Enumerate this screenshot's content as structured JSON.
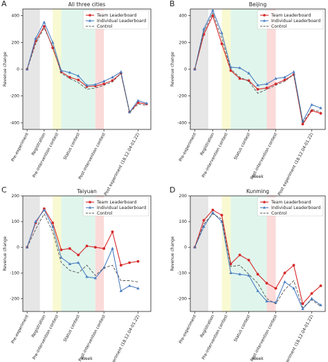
{
  "chart_data": [
    {
      "letter": "A",
      "type": "line",
      "title": "All three cities",
      "xlabel": "",
      "ylabel": "Revenue change",
      "ylim": [
        -450,
        450
      ],
      "yticks": [
        -400,
        -200,
        0,
        200,
        400
      ],
      "xticks": [
        {
          "i": 0,
          "label": "Pre-experiment"
        },
        {
          "i": 2,
          "label": "Registration"
        },
        {
          "i": 3.5,
          "label": "Pre-intervention contest"
        },
        {
          "i": 6,
          "label": "Status contest"
        },
        {
          "i": 9,
          "label": "Post-intervention contest"
        },
        {
          "i": 13,
          "label": "Post experiment (18.12.04-01.22)"
        }
      ],
      "shading": [
        {
          "from": -0.5,
          "to": 1.5,
          "color": "#e6e6e6"
        },
        {
          "from": 3.0,
          "to": 4.0,
          "color": "#f9f9d2"
        },
        {
          "from": 4.0,
          "to": 8.0,
          "color": "#e0f6ed"
        },
        {
          "from": 8.0,
          "to": 9.0,
          "color": "#fbdada"
        }
      ],
      "legend": "top-right",
      "series": [
        {
          "name": "Team Leaderboard",
          "color": "#d62728",
          "style": "solid",
          "marker": "circle",
          "values": [
            0,
            210,
            320,
            160,
            -20,
            -60,
            -80,
            -130,
            -125,
            -110,
            -85,
            -30,
            -320,
            -250,
            -260
          ]
        },
        {
          "name": "Individual Leaderboard",
          "color": "#4c7fc0",
          "style": "solid",
          "marker": "triangle",
          "values": [
            0,
            230,
            350,
            200,
            -10,
            -25,
            -50,
            -120,
            -115,
            -90,
            -60,
            -20,
            -320,
            -235,
            -255
          ]
        },
        {
          "name": "Control",
          "color": "#555555",
          "style": "dashed",
          "marker": "none",
          "values": [
            0,
            190,
            310,
            170,
            -30,
            -70,
            -100,
            -150,
            -140,
            -120,
            -95,
            -30,
            -325,
            -260,
            -270
          ]
        }
      ]
    },
    {
      "letter": "B",
      "type": "line",
      "title": "Beijing",
      "xlabel": "Week",
      "ylabel": "Revenue change",
      "ylim": [
        -450,
        450
      ],
      "yticks": [
        -400,
        -200,
        0,
        200,
        400
      ],
      "xticks": [
        {
          "i": 0,
          "label": "Pre-experiment"
        },
        {
          "i": 2,
          "label": "Registration"
        },
        {
          "i": 3.5,
          "label": "Pre-intervention contest"
        },
        {
          "i": 6,
          "label": "Status contest"
        },
        {
          "i": 9,
          "label": "Post-intervention contest"
        },
        {
          "i": 13,
          "label": "Post experiment (18.12.04-01.22)"
        }
      ],
      "shading": [
        {
          "from": -0.5,
          "to": 1.5,
          "color": "#e6e6e6"
        },
        {
          "from": 3.0,
          "to": 4.0,
          "color": "#f9f9d2"
        },
        {
          "from": 4.0,
          "to": 8.0,
          "color": "#e0f6ed"
        },
        {
          "from": 8.0,
          "to": 9.0,
          "color": "#fbdada"
        }
      ],
      "legend": "top-right",
      "series": [
        {
          "name": "Team Leaderboard",
          "color": "#d62728",
          "style": "solid",
          "marker": "circle",
          "values": [
            0,
            260,
            400,
            190,
            -10,
            -70,
            -85,
            -150,
            -140,
            -110,
            -80,
            -40,
            -410,
            -310,
            -330
          ]
        },
        {
          "name": "Individual Leaderboard",
          "color": "#4c7fc0",
          "style": "solid",
          "marker": "triangle",
          "values": [
            0,
            300,
            440,
            270,
            15,
            10,
            -30,
            -120,
            -110,
            -70,
            -60,
            -20,
            -390,
            -265,
            -290
          ]
        },
        {
          "name": "Control",
          "color": "#555555",
          "style": "dashed",
          "marker": "none",
          "values": [
            0,
            280,
            420,
            230,
            0,
            -60,
            -90,
            -180,
            -150,
            -120,
            -90,
            -40,
            -400,
            -300,
            -320
          ]
        }
      ]
    },
    {
      "letter": "C",
      "type": "line",
      "title": "Taiyuan",
      "xlabel": "Week",
      "ylabel": "Revenue change",
      "ylim": [
        -250,
        200
      ],
      "yticks": [
        -200,
        -100,
        0,
        100,
        200
      ],
      "xticks": [
        {
          "i": 0,
          "label": "Pre-experiment"
        },
        {
          "i": 2,
          "label": "Registration"
        },
        {
          "i": 3.5,
          "label": "Pre-intervention contest"
        },
        {
          "i": 6,
          "label": "Status contest"
        },
        {
          "i": 9,
          "label": "Post-intervention contest"
        },
        {
          "i": 13,
          "label": "Post experiment (18.12.04-01.22)"
        }
      ],
      "shading": [
        {
          "from": -0.5,
          "to": 1.5,
          "color": "#e6e6e6"
        },
        {
          "from": 3.0,
          "to": 4.0,
          "color": "#f9f9d2"
        },
        {
          "from": 4.0,
          "to": 8.0,
          "color": "#e0f6ed"
        },
        {
          "from": 8.0,
          "to": 9.0,
          "color": "#fbdada"
        }
      ],
      "legend": "top-right",
      "series": [
        {
          "name": "Team Leaderboard",
          "color": "#d62728",
          "style": "solid",
          "marker": "circle",
          "values": [
            0,
            95,
            150,
            95,
            -10,
            -5,
            -30,
            5,
            0,
            -5,
            60,
            -70,
            -60,
            -55
          ]
        },
        {
          "name": "Individual Leaderboard",
          "color": "#4c7fc0",
          "style": "solid",
          "marker": "triangle",
          "values": [
            0,
            100,
            145,
            80,
            -40,
            -65,
            -60,
            -115,
            -120,
            -80,
            -5,
            -170,
            -150,
            -160
          ]
        },
        {
          "name": "Control",
          "color": "#555555",
          "style": "dashed",
          "marker": "none",
          "values": [
            0,
            70,
            130,
            60,
            -60,
            -90,
            -100,
            -70,
            -110,
            -80,
            -70,
            -130,
            -130,
            -135
          ]
        }
      ]
    },
    {
      "letter": "D",
      "type": "line",
      "title": "Kunming",
      "xlabel": "Week",
      "ylabel": "Revenue change",
      "ylim": [
        -250,
        200
      ],
      "yticks": [
        -200,
        -100,
        0,
        100,
        200
      ],
      "xticks": [
        {
          "i": 0,
          "label": "Pre-experiment"
        },
        {
          "i": 2,
          "label": "Registration"
        },
        {
          "i": 3.5,
          "label": "Pre-intervention contest"
        },
        {
          "i": 6,
          "label": "Status contest"
        },
        {
          "i": 9,
          "label": "Post-intervention contest"
        },
        {
          "i": 13,
          "label": "Post experiment (18.12.04-01.22)"
        }
      ],
      "shading": [
        {
          "from": -0.5,
          "to": 1.5,
          "color": "#e6e6e6"
        },
        {
          "from": 3.0,
          "to": 4.0,
          "color": "#f9f9d2"
        },
        {
          "from": 4.0,
          "to": 8.0,
          "color": "#e0f6ed"
        },
        {
          "from": 8.0,
          "to": 9.0,
          "color": "#fbdada"
        }
      ],
      "legend": "top-right",
      "series": [
        {
          "name": "Team Leaderboard",
          "color": "#d62728",
          "style": "solid",
          "marker": "circle",
          "values": [
            0,
            105,
            145,
            125,
            -65,
            -30,
            -50,
            -105,
            -140,
            -160,
            -100,
            -70,
            -220,
            -180,
            -150
          ]
        },
        {
          "name": "Individual Leaderboard",
          "color": "#4c7fc0",
          "style": "solid",
          "marker": "triangle",
          "values": [
            0,
            80,
            135,
            100,
            -100,
            -105,
            -110,
            -170,
            -210,
            -215,
            -135,
            -160,
            -240,
            -200,
            -225
          ]
        },
        {
          "name": "Control",
          "color": "#555555",
          "style": "dashed",
          "marker": "none",
          "values": [
            0,
            90,
            130,
            110,
            -75,
            -70,
            -105,
            -140,
            -200,
            -220,
            -165,
            -130,
            -235,
            -205,
            -230
          ]
        }
      ]
    }
  ]
}
